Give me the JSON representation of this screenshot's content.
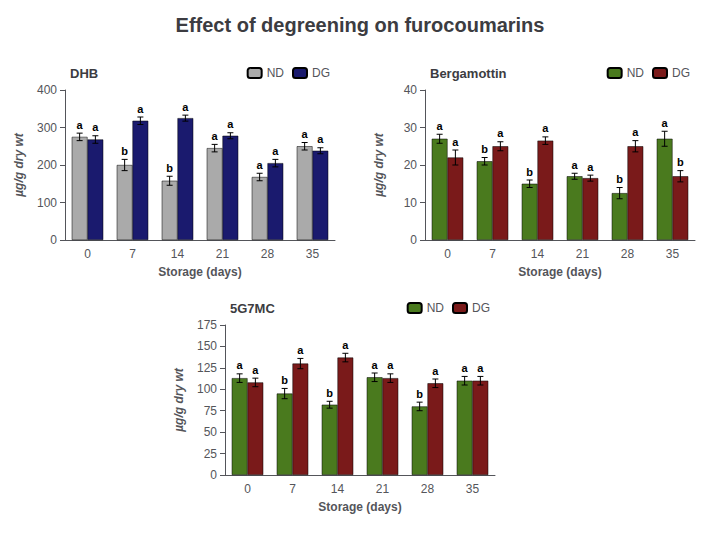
{
  "title": "Effect of degreening on furocoumarins",
  "chart_data": [
    {
      "type": "bar",
      "title": "DHB",
      "xlabel": "Storage (days)",
      "ylabel": "µg/g dry wt",
      "categories": [
        "0",
        "7",
        "14",
        "21",
        "28",
        "35"
      ],
      "series": [
        {
          "name": "ND",
          "color": "#aaaaaa",
          "values": [
            275,
            200,
            158,
            245,
            168,
            250
          ],
          "errors": [
            10,
            15,
            12,
            10,
            10,
            10
          ],
          "labels": [
            "a",
            "b",
            "b",
            "a",
            "a",
            "a"
          ]
        },
        {
          "name": "DG",
          "color": "#1a1a6e",
          "values": [
            268,
            318,
            325,
            278,
            205,
            238
          ],
          "errors": [
            10,
            10,
            8,
            8,
            10,
            8
          ],
          "labels": [
            "a",
            "a",
            "a",
            "a",
            "a",
            "a"
          ]
        }
      ],
      "ylim": [
        0,
        400
      ],
      "yticks": [
        0,
        100,
        200,
        300,
        400
      ],
      "grid": false,
      "legend": "upper right"
    },
    {
      "type": "bar",
      "title": "Bergamottin",
      "xlabel": "Storage (days)",
      "ylabel": "µg/g dry wt",
      "categories": [
        "0",
        "7",
        "14",
        "21",
        "28",
        "35"
      ],
      "series": [
        {
          "name": "ND",
          "color": "#4a7a1e",
          "values": [
            27,
            21,
            15,
            17,
            12.5,
            27
          ],
          "errors": [
            1.2,
            1.0,
            1.0,
            0.8,
            1.5,
            2.0
          ],
          "labels": [
            "a",
            "b",
            "b",
            "a",
            "b",
            "a"
          ]
        },
        {
          "name": "DG",
          "color": "#7a1a1a",
          "values": [
            22,
            25,
            26.5,
            16.5,
            25,
            17
          ],
          "errors": [
            2.0,
            1.2,
            1.0,
            0.8,
            1.5,
            1.5
          ],
          "labels": [
            "a",
            "a",
            "a",
            "a",
            "a",
            "b"
          ]
        }
      ],
      "ylim": [
        0,
        40
      ],
      "yticks": [
        0,
        10,
        20,
        30,
        40
      ],
      "grid": false,
      "legend": "upper right"
    },
    {
      "type": "bar",
      "title": "5G7MC",
      "xlabel": "Storage (days)",
      "ylabel": "µg/g dry wt",
      "categories": [
        "0",
        "7",
        "14",
        "21",
        "28",
        "35"
      ],
      "series": [
        {
          "name": "ND",
          "color": "#4a7a1e",
          "values": [
            113,
            95,
            82,
            114,
            80,
            110
          ],
          "errors": [
            5,
            6,
            4,
            5,
            5,
            5
          ],
          "labels": [
            "a",
            "b",
            "b",
            "a",
            "b",
            "a"
          ]
        },
        {
          "name": "DG",
          "color": "#7a1a1a",
          "values": [
            108,
            130,
            137,
            113,
            107,
            110
          ],
          "errors": [
            5,
            6,
            5,
            5,
            5,
            5
          ],
          "labels": [
            "a",
            "a",
            "a",
            "a",
            "a",
            "a"
          ]
        }
      ],
      "ylim": [
        0,
        175
      ],
      "yticks": [
        0,
        25,
        50,
        75,
        100,
        125,
        150,
        175
      ],
      "grid": false,
      "legend": "upper right"
    }
  ]
}
